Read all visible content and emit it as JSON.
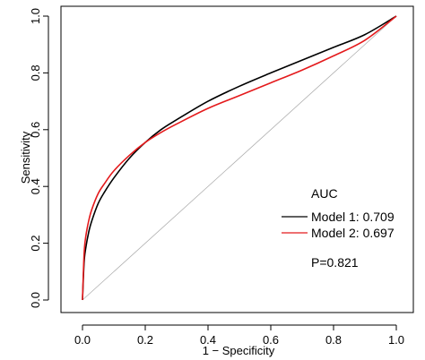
{
  "chart_data": {
    "type": "line",
    "xlabel": "1 − Specificity",
    "ylabel": "Sensitivity",
    "xlim": [
      0,
      1
    ],
    "ylim": [
      0,
      1
    ],
    "x_ticks": [
      "0.0",
      "0.2",
      "0.4",
      "0.6",
      "0.8",
      "1.0"
    ],
    "y_ticks": [
      "0.0",
      "0.2",
      "0.4",
      "0.6",
      "0.8",
      "1.0"
    ],
    "grid": false,
    "legend_position": "bottom-right",
    "legend_title": "AUC",
    "annotation": "P=0.821",
    "reference_line": {
      "x": [
        0,
        1
      ],
      "y": [
        0,
        1
      ],
      "color": "#b0b0b0"
    },
    "series": [
      {
        "name": "Model 1: 0.709",
        "color": "#000000",
        "x": [
          0,
          0.005,
          0.01,
          0.02,
          0.03,
          0.05,
          0.07,
          0.1,
          0.15,
          0.2,
          0.25,
          0.3,
          0.4,
          0.5,
          0.6,
          0.7,
          0.8,
          0.9,
          1.0
        ],
        "y": [
          0,
          0.13,
          0.18,
          0.24,
          0.28,
          0.34,
          0.38,
          0.43,
          0.5,
          0.555,
          0.6,
          0.635,
          0.7,
          0.753,
          0.8,
          0.845,
          0.89,
          0.935,
          1.0
        ]
      },
      {
        "name": "Model 2: 0.697",
        "color": "#e41a1c",
        "x": [
          0,
          0.005,
          0.01,
          0.02,
          0.03,
          0.05,
          0.07,
          0.1,
          0.15,
          0.2,
          0.25,
          0.3,
          0.4,
          0.5,
          0.6,
          0.7,
          0.8,
          0.9,
          1.0
        ],
        "y": [
          0,
          0.16,
          0.22,
          0.28,
          0.32,
          0.375,
          0.41,
          0.455,
          0.51,
          0.555,
          0.59,
          0.62,
          0.675,
          0.72,
          0.765,
          0.81,
          0.86,
          0.915,
          1.0
        ]
      }
    ]
  }
}
